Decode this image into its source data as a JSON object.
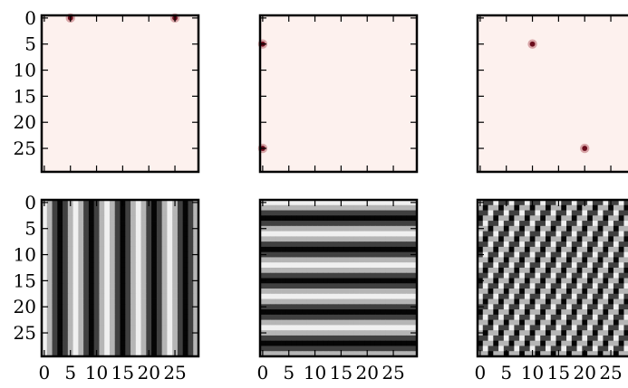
{
  "chart_data": [
    {
      "type": "heatmap",
      "panel": "row1-col1",
      "n": 30,
      "colormap": "reds",
      "background": "#fdf1ee",
      "peaks": [
        [
          0,
          5
        ],
        [
          0,
          25
        ]
      ],
      "yticks": [
        "0",
        "5",
        "10",
        "15",
        "20",
        "25"
      ],
      "xticks": []
    },
    {
      "type": "heatmap",
      "panel": "row1-col2",
      "n": 30,
      "colormap": "reds",
      "background": "#fdf1ee",
      "peaks": [
        [
          5,
          0
        ],
        [
          25,
          0
        ]
      ],
      "yticks": [],
      "xticks": []
    },
    {
      "type": "heatmap",
      "panel": "row1-col3",
      "n": 30,
      "colormap": "reds",
      "background": "#fdf1ee",
      "peaks": [
        [
          5,
          10
        ],
        [
          25,
          20
        ]
      ],
      "yticks": [],
      "xticks": []
    },
    {
      "type": "heatmap",
      "panel": "row2-col1",
      "n": 30,
      "colormap": "gray",
      "wave": {
        "kx": 5,
        "ky": 0
      },
      "yticks": [
        "0",
        "5",
        "10",
        "15",
        "20",
        "25"
      ],
      "xticks": [
        "0",
        "5",
        "10",
        "15",
        "20",
        "25"
      ]
    },
    {
      "type": "heatmap",
      "panel": "row2-col2",
      "n": 30,
      "colormap": "gray",
      "wave": {
        "kx": 0,
        "ky": 5
      },
      "yticks": [],
      "xticks": [
        "0",
        "5",
        "10",
        "15",
        "20",
        "25"
      ]
    },
    {
      "type": "heatmap",
      "panel": "row2-col3",
      "n": 30,
      "colormap": "gray",
      "wave": {
        "kx": 10,
        "ky": 5
      },
      "yticks": [],
      "xticks": [
        "0",
        "5",
        "10",
        "15",
        "20",
        "25"
      ]
    }
  ]
}
